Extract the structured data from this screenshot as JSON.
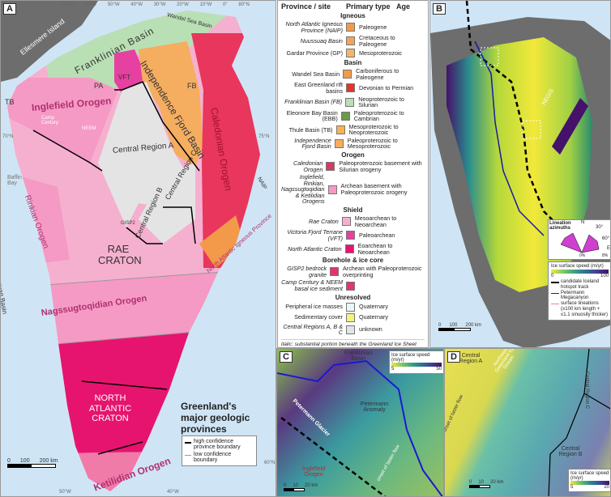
{
  "panel_a": {
    "label": "A",
    "longitudes": [
      "70°W",
      "60°W",
      "50°W",
      "40°W",
      "30°W",
      "20°W",
      "10°W",
      "0°",
      "80°N"
    ],
    "latitudes": [
      "70°N",
      "75°N",
      "60°N"
    ],
    "bottom_longitudes": [
      "50°W",
      "40°W"
    ],
    "places": {
      "ellesmere": "Ellesmere Island",
      "franklinian": "Franklinian Basin",
      "wandel": "Wandel Sea Basin",
      "vft": "VFT",
      "pa": "PA",
      "fb": "FB",
      "tb": "TB",
      "inglefield": "Inglefield Orogen",
      "camp": "Camp Century",
      "neem": "NEEM",
      "independence": "Independence Fjord Basin",
      "central_a": "Central Region A",
      "central_b": "Central Region B",
      "central_c": "Central Region C",
      "caledonian": "Caledonian Orogen",
      "naip_short": "NAIP",
      "baffin": "Baffin Bay",
      "rinkian": "Rinkian Orogen",
      "nuussuaq": "Nuussuaq Basin",
      "gisp2": "GISP2",
      "rae": "RAE CRATON",
      "nagssugtoqidian": "Nagssugtoqidian Orogen",
      "naip": "North Atlantic Igneous Province",
      "nac": "NORTH ATLANTIC CRATON",
      "ketilidian": "Ketilidian Orogen"
    },
    "title": "Greenland's major geologic provinces",
    "legend": {
      "high": "high confidence province boundary",
      "low": "low confidence boundary"
    },
    "scale": {
      "ticks": [
        "0",
        "100",
        "200 km"
      ]
    }
  },
  "legend": {
    "headers": [
      "Province / site",
      "Primary type",
      "Age"
    ],
    "sections": [
      {
        "title": "Igneous",
        "rows": [
          {
            "name": "North Atlantic Igneous Province (NAIP)",
            "italic": true,
            "color": "#f39a4a",
            "age": "Paleogene"
          },
          {
            "name": "Nuussuaq Basin",
            "italic": true,
            "color": "#f5a35a",
            "age": "Cretaceous to Paleogene"
          },
          {
            "name": "Gardar Province (GP)",
            "italic": false,
            "color": "#f6b36a",
            "age": "Mesoproterozoic"
          }
        ]
      },
      {
        "title": "Basin",
        "rows": [
          {
            "name": "Wandel Sea Basin",
            "italic": false,
            "color": "#f39a4a",
            "age": "Carboniferous to Paleogene"
          },
          {
            "name": "East Greenland rift basins",
            "italic": false,
            "color": "#e2352b",
            "age": "Devonian to Permian"
          },
          {
            "name": "Franklinian Basin (FB)",
            "italic": true,
            "color": "#b9e0b4",
            "age": "Neoproterozoic to Silurian"
          },
          {
            "name": "Eleonore Bay Basin (EBB)",
            "italic": false,
            "color": "#6b9a48",
            "age": "Paleoproterozoic to Cambrian"
          },
          {
            "name": "Thule Basin (TB)",
            "italic": false,
            "color": "#f8b450",
            "age": "Mesoproterozoic to Neoproterozoic"
          },
          {
            "name": "Independence Fjord Basin",
            "italic": true,
            "color": "#f5ad60",
            "age": "Paleoproterozoic to Mesoproterozoic"
          }
        ]
      },
      {
        "title": "Orogen",
        "rows": [
          {
            "name": "Caledonian Orogen",
            "italic": true,
            "color": "#d63a62",
            "age": "Paleoproterozoic basement with Silurian orogeny"
          },
          {
            "name": "Inglefield, Rinkian, Nagssugtoqidian & Ketilidian Orogens",
            "italic": true,
            "color": "#f59ac4",
            "age": "Archean basement with Paleoproterozoic orogeny"
          }
        ]
      },
      {
        "title": "Shield",
        "rows": [
          {
            "name": "Rae Craton",
            "italic": true,
            "color": "#f6b0cf",
            "age": "Mesoarchean to Neoarchean"
          },
          {
            "name": "Victoria Fjord Terrane (VFT)",
            "italic": true,
            "color": "#e640a0",
            "age": "Paleoarchean"
          },
          {
            "name": "North Atlantic Craton",
            "italic": true,
            "color": "#e6146e",
            "age": "Eoarchean to Neoarchean"
          }
        ]
      },
      {
        "title": "Borehole & ice core",
        "rows": [
          {
            "name": "GISP2 bedrock granite",
            "italic": true,
            "color": "#e2356a",
            "age": "Archean with Paleoproterozoic overprinting"
          },
          {
            "name": "Camp Century & NEEM basal ice sediment",
            "italic": true,
            "color": "#e2356a",
            "age": ""
          }
        ]
      },
      {
        "title": "Unresolved",
        "rows": [
          {
            "name": "Peripheral ice masses",
            "italic": false,
            "color": "#e6f7f9",
            "age": "Quaternary"
          },
          {
            "name": "Sedimentary cover",
            "italic": false,
            "color": "#f7f27a",
            "age": "Quaternary"
          },
          {
            "name": "Central Regions A, B & C",
            "italic": true,
            "color": "#e4e4e4",
            "age": "unknown"
          }
        ]
      }
    ],
    "note": "italic: substantial portion beneath the Greenland Ice Sheet"
  },
  "panel_b": {
    "label": "B",
    "neis": "NEGIS",
    "rose": {
      "title": "Lineation azimuths",
      "north": "N",
      "a30": "30°",
      "a60": "60°",
      "e": "E",
      "p0": "0%",
      "p8": "8%"
    },
    "speed_title": "Ice surface speed (m/yr)",
    "speed_min": "0",
    "speed_max": "100",
    "items": {
      "hotspot": "candidate Iceland hotspot track",
      "canyon": "Petermann Megacanyon",
      "lineations": "surface lineations (≥100 km length + ≤1.1 sinuosity thicker)"
    },
    "scale": {
      "ticks": [
        "0",
        "100",
        "200 km"
      ]
    }
  },
  "panel_c": {
    "label": "C",
    "places": {
      "franklinian": "Franklinian Basin",
      "glacier": "Petermann Glacier",
      "anomaly": "Petermann Anomaly",
      "inglefield": "Inglefield Orogen",
      "onset": "onset of faster flow"
    },
    "speed_title": "Ice surface speed (m/yr)",
    "speed_min": "5",
    "speed_max": "50",
    "scale": {
      "ticks": [
        "0",
        "10",
        "20 km"
      ]
    }
  },
  "panel_d": {
    "label": "D",
    "places": {
      "central_a": "Central Region A",
      "negis": "Northeast Greenland Ice Stream",
      "central_c": "Central Region C",
      "central_b": "Central Region B",
      "onset": "onset of faster flow"
    },
    "speed_title": "Ice surface speed (m/yr)",
    "speed_min": "5",
    "speed_max": "20",
    "scale": {
      "ticks": [
        "0",
        "10",
        "20 km"
      ]
    }
  },
  "colors": {
    "ocean": "#cfe5f5",
    "land_grey": "#6d6d6d"
  }
}
